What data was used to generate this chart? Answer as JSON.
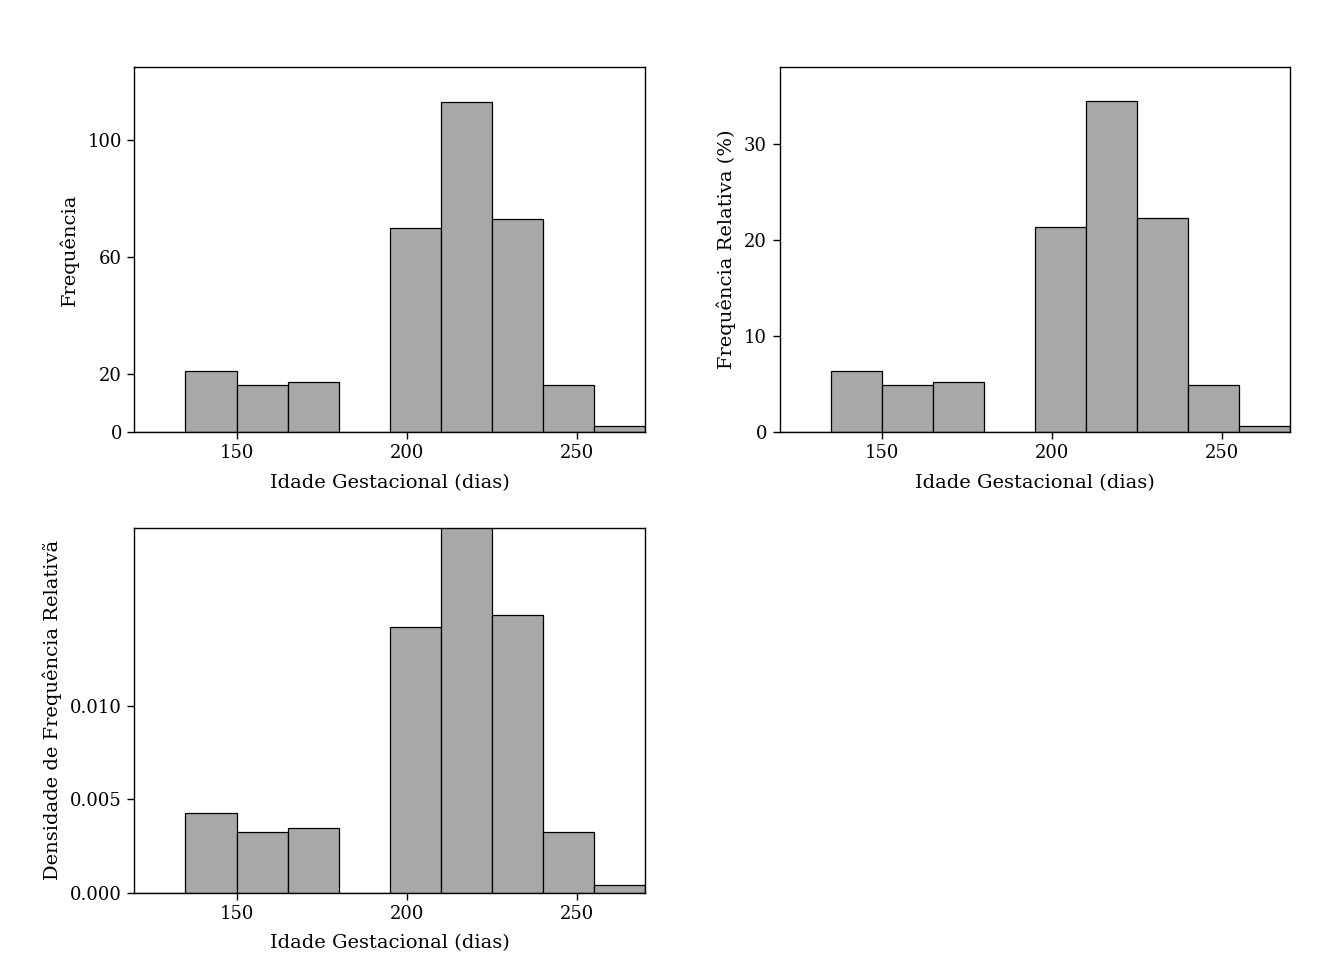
{
  "bin_edges": [
    120,
    135,
    150,
    165,
    180,
    195,
    210,
    225,
    240,
    255,
    270
  ],
  "frequencies": [
    0,
    21,
    16,
    17,
    0,
    70,
    113,
    73,
    16,
    2
  ],
  "bar_color": "#a8a8a8",
  "bar_edgecolor": "#000000",
  "background_color": "#ffffff",
  "ylabel1": "Frequência",
  "ylabel2": "Frequência Relativa (%)",
  "ylabel3": "Densidade de Frequência Relativã",
  "xlabel": "Idade Gestacional (dias)",
  "tick_fontsize": 13,
  "label_fontsize": 14,
  "yticks1": [
    0,
    20,
    60,
    100
  ],
  "yticks2": [
    0,
    10,
    20,
    30
  ],
  "yticks3": [
    0.0,
    0.005,
    0.01
  ],
  "ylim1": [
    0,
    125
  ],
  "ylim2": [
    0,
    38
  ],
  "ylim3": [
    0,
    0.0195
  ],
  "xlim": [
    120,
    270
  ],
  "xticks": [
    150,
    200,
    250
  ]
}
